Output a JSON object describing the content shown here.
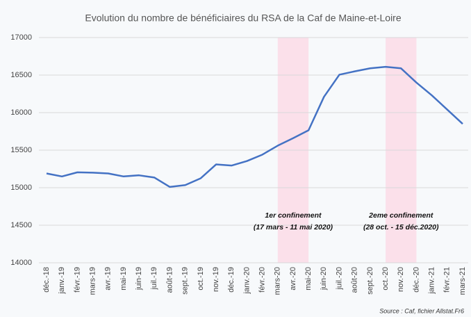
{
  "chart_data": {
    "type": "line",
    "title": "Evolution du nombre de bénéficiaires du RSA de la Caf de Maine-et-Loire",
    "categories": [
      "déc.-18",
      "janv.-19",
      "févr.-19",
      "mars-19",
      "avr.-19",
      "mai-19",
      "juin-19",
      "juil.-19",
      "août-19",
      "sept.-19",
      "oct.-19",
      "nov.-19",
      "déc.-19",
      "janv.-20",
      "févr.-20",
      "mars-20",
      "avr.-20",
      "mai-20",
      "juin-20",
      "juil.-20",
      "août-20",
      "sept.-20",
      "oct.-20",
      "nov.-20",
      "déc.-20",
      "janv.-21",
      "févr.-21",
      "mars-21"
    ],
    "values": [
      15190,
      15150,
      15205,
      15200,
      15190,
      15150,
      15165,
      15135,
      15010,
      15035,
      15125,
      15310,
      15295,
      15355,
      15440,
      15560,
      15660,
      15765,
      16210,
      16505,
      16550,
      16590,
      16610,
      16590,
      16400,
      16230,
      16040,
      15850
    ],
    "color": "#4472c4",
    "ylim": [
      14000,
      17000
    ],
    "yticks": [
      14000,
      14500,
      15000,
      15500,
      16000,
      16500,
      17000
    ],
    "grid": true,
    "ranges": [
      {
        "from": "mars-20",
        "to": "mai-20",
        "color": "#fbe0ea",
        "label": [
          "1er confinement",
          "(17 mars - 11 mai 2020)"
        ]
      },
      {
        "from": "oct.-20",
        "to": "déc.-20",
        "color": "#fbe0ea",
        "label": [
          "2eme confinement",
          "(28 oct. - 15 déc.2020)"
        ]
      }
    ],
    "source": "Source : Caf, fichier Allstat.Fr6"
  }
}
